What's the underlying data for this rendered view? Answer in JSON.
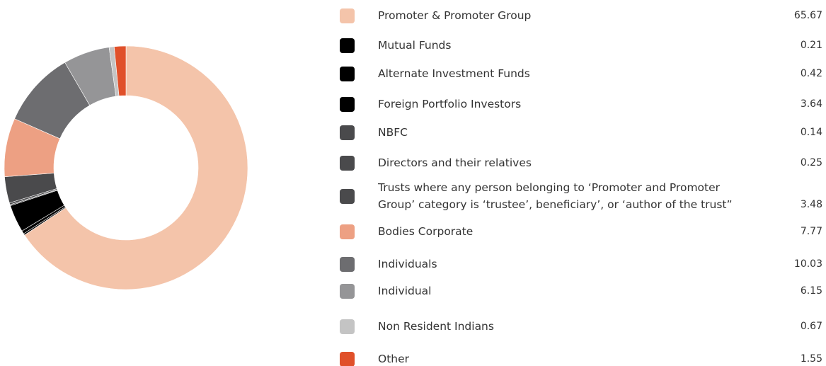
{
  "chart_data": {
    "type": "donut",
    "categories": [
      "Promoter & Promoter Group",
      "Mutual Funds",
      "Alternate Investment Funds",
      "Foreign Portfolio Investors",
      "NBFC",
      "Directors and their relatives",
      "Trusts where any person belonging to ‘Promoter and Promoter Group’ category is ‘trustee’, beneficiary’, or ‘author of the trust”",
      "Bodies Corporate",
      "Individuals",
      "Individual",
      "Non Resident Indians",
      "Other"
    ],
    "values": [
      65.67,
      0.21,
      0.42,
      3.64,
      0.14,
      0.25,
      3.48,
      7.77,
      10.03,
      6.15,
      0.67,
      1.55
    ],
    "colors": [
      "#f4c4aa",
      "#000000",
      "#000000",
      "#000000",
      "#4a4a4c",
      "#4a4a4c",
      "#4a4a4c",
      "#eda083",
      "#6d6d70",
      "#959597",
      "#c4c4c4",
      "#e0502a"
    ]
  }
}
